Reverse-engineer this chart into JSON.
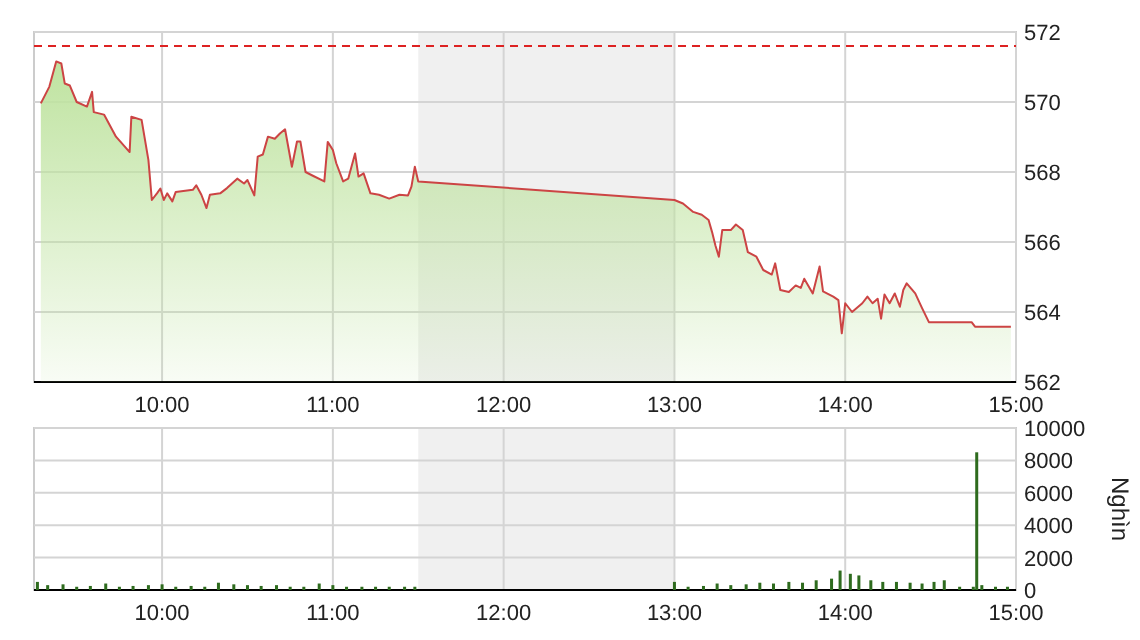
{
  "chart_data": [
    {
      "type": "area",
      "xlim": [
        9.25,
        15
      ],
      "xticks": [
        {
          "value": 10,
          "label": "10:00"
        },
        {
          "value": 11,
          "label": "11:00"
        },
        {
          "value": 12,
          "label": "12:00"
        },
        {
          "value": 13,
          "label": "13:00"
        },
        {
          "value": 14,
          "label": "14:00"
        },
        {
          "value": 15,
          "label": "15:00"
        }
      ],
      "ylim": [
        562,
        572
      ],
      "yticks": [
        562,
        564,
        566,
        568,
        570,
        572
      ],
      "grid": true,
      "ref_lines": [
        {
          "axis": "y",
          "value": 571.6,
          "color": "#dd2222",
          "line_style": "dashed"
        }
      ],
      "bands": [
        {
          "axis": "x",
          "from": 11.5,
          "to": 13,
          "color": "#f0f0f0"
        }
      ],
      "series": [
        {
          "color": "#cc4444",
          "x": [
            9.29,
            9.34,
            9.38,
            9.41,
            9.43,
            9.46,
            9.5,
            9.56,
            9.59,
            9.6,
            9.66,
            9.73,
            9.81,
            9.82,
            9.88,
            9.92,
            9.94,
            9.97,
            9.99,
            10.01,
            10.03,
            10.06,
            10.08,
            10.18,
            10.2,
            10.23,
            10.26,
            10.28,
            10.34,
            10.38,
            10.44,
            10.48,
            10.5,
            10.54,
            10.56,
            10.59,
            10.62,
            10.66,
            10.69,
            10.72,
            10.76,
            10.79,
            10.81,
            10.84,
            10.88,
            10.95,
            10.97,
            11.0,
            11.02,
            11.06,
            11.09,
            11.13,
            11.15,
            11.18,
            11.22,
            11.27,
            11.33,
            11.39,
            11.44,
            11.46,
            11.48,
            11.5,
            13.0,
            13.05,
            13.11,
            13.16,
            13.2,
            13.22,
            13.24,
            13.26,
            13.28,
            13.33,
            13.36,
            13.4,
            13.43,
            13.48,
            13.52,
            13.57,
            13.59,
            13.62,
            13.67,
            13.71,
            13.74,
            13.76,
            13.81,
            13.85,
            13.87,
            13.93,
            13.96,
            13.98,
            14.0,
            14.04,
            14.1,
            14.13,
            14.16,
            14.19,
            14.21,
            14.23,
            14.26,
            14.29,
            14.32,
            14.34,
            14.36,
            14.41,
            14.45,
            14.49,
            14.74,
            14.76,
            14.97
          ],
          "values": [
            569.96,
            570.44,
            571.16,
            571.1,
            570.53,
            570.47,
            570.0,
            569.87,
            570.29,
            569.71,
            569.64,
            569.01,
            568.57,
            569.58,
            569.49,
            568.34,
            567.2,
            567.39,
            567.53,
            567.2,
            567.39,
            567.16,
            567.43,
            567.49,
            567.62,
            567.35,
            566.97,
            567.35,
            567.39,
            567.54,
            567.81,
            567.67,
            567.77,
            567.33,
            568.44,
            568.5,
            569.01,
            568.95,
            569.1,
            569.22,
            568.15,
            568.87,
            568.87,
            568.0,
            567.9,
            567.73,
            568.86,
            568.63,
            568.25,
            567.73,
            567.81,
            568.53,
            567.87,
            567.96,
            567.39,
            567.35,
            567.24,
            567.35,
            567.33,
            567.58,
            568.15,
            567.73,
            567.2,
            567.1,
            566.86,
            566.78,
            566.63,
            566.29,
            565.9,
            565.58,
            566.34,
            566.34,
            566.5,
            566.34,
            565.71,
            565.58,
            565.2,
            565.07,
            565.39,
            564.63,
            564.57,
            564.76,
            564.69,
            564.95,
            564.53,
            565.3,
            564.59,
            564.44,
            564.34,
            563.39,
            564.25,
            564.0,
            564.25,
            564.44,
            564.25,
            564.38,
            563.81,
            564.5,
            564.25,
            564.53,
            564.15,
            564.63,
            564.82,
            564.53,
            564.11,
            563.71,
            563.71,
            563.58,
            563.58
          ]
        }
      ]
    },
    {
      "type": "bar",
      "ylabel": "Nghìn",
      "xlim": [
        9.25,
        15
      ],
      "xticks": [
        {
          "value": 10,
          "label": "10:00"
        },
        {
          "value": 11,
          "label": "11:00"
        },
        {
          "value": 12,
          "label": "12:00"
        },
        {
          "value": 13,
          "label": "13:00"
        },
        {
          "value": 14,
          "label": "14:00"
        },
        {
          "value": 15,
          "label": "15:00"
        }
      ],
      "ylim": [
        0,
        10000
      ],
      "yticks": [
        0,
        2000,
        4000,
        6000,
        8000,
        10000
      ],
      "grid": true,
      "bands": [
        {
          "axis": "x",
          "from": 11.5,
          "to": 13,
          "color": "#f0f0f0"
        }
      ],
      "series": [
        {
          "color": "#2e6b1e",
          "x": [
            9.27,
            9.33,
            9.42,
            9.5,
            9.58,
            9.67,
            9.75,
            9.83,
            9.92,
            10.0,
            10.08,
            10.17,
            10.25,
            10.33,
            10.42,
            10.5,
            10.58,
            10.67,
            10.75,
            10.83,
            10.92,
            11.0,
            11.08,
            11.17,
            11.25,
            11.33,
            11.42,
            11.48,
            13.0,
            13.08,
            13.17,
            13.25,
            13.33,
            13.42,
            13.5,
            13.58,
            13.67,
            13.75,
            13.83,
            13.92,
            13.97,
            14.03,
            14.08,
            14.15,
            14.22,
            14.3,
            14.38,
            14.45,
            14.52,
            14.58,
            14.67,
            14.75,
            14.77,
            14.8,
            14.88,
            14.95
          ],
          "values": [
            500,
            300,
            350,
            200,
            250,
            400,
            200,
            250,
            300,
            350,
            200,
            250,
            200,
            450,
            350,
            300,
            250,
            300,
            200,
            200,
            400,
            300,
            200,
            200,
            200,
            200,
            200,
            200,
            500,
            200,
            250,
            400,
            300,
            350,
            450,
            400,
            500,
            450,
            600,
            700,
            1200,
            1000,
            900,
            600,
            500,
            500,
            450,
            400,
            500,
            600,
            200,
            200,
            8500,
            300,
            200,
            200
          ]
        }
      ]
    }
  ]
}
